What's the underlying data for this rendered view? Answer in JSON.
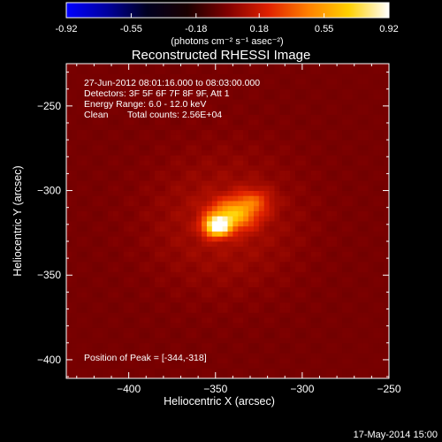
{
  "figure": {
    "title": "Reconstructed RHESSI Image",
    "xlabel": "Heliocentric X (arcsec)",
    "ylabel": "Heliocentric Y (arcsec)",
    "footer_date": "17-May-2014 15:00"
  },
  "colorbar": {
    "ticks": [
      "-0.92",
      "-0.55",
      "-0.18",
      "0.18",
      "0.55",
      "0.92"
    ],
    "label": "(photons cm⁻² s⁻¹ asec⁻²)",
    "stops": [
      "#0000ff",
      "#0000a0",
      "#000020",
      "#1a0000",
      "#800000",
      "#e02000",
      "#ff8000",
      "#ffd000",
      "#ffffff"
    ]
  },
  "annotations": {
    "time_range": "27-Jun-2012 08:01:16.000 to 08:03:00.000",
    "detectors": "Detectors: 3F 5F 6F 7F 8F 9F, Att 1",
    "energy": "Energy Range: 6.0 - 12.0 keV",
    "clean_label": "Clean",
    "total_counts": "Total counts: 2.56E+04",
    "peak": "Position of Peak = [-344,-318]"
  },
  "chart_data": {
    "type": "heatmap",
    "title": "Reconstructed RHESSI Image",
    "xlabel": "Heliocentric X (arcsec)",
    "ylabel": "Heliocentric Y (arcsec)",
    "xlim": [
      -436,
      -250
    ],
    "ylim": [
      -411,
      -225
    ],
    "xticks": [
      -400,
      -350,
      -300,
      -250
    ],
    "xtick_labels": [
      "−400",
      "−350",
      "−300",
      "−250"
    ],
    "yticks": [
      -400,
      -350,
      -300,
      -250
    ],
    "ytick_labels": [
      "−400",
      "−350",
      "−300",
      "−250"
    ],
    "color_range": [
      -0.92,
      0.92
    ],
    "peak": [
      -344,
      -318
    ],
    "sources": [
      {
        "x": -349,
        "y": -321,
        "sx": 5,
        "sy": 4,
        "amp": 0.92
      },
      {
        "x": -340,
        "y": -314,
        "sx": 9,
        "sy": 6,
        "amp": 0.55
      },
      {
        "x": -328,
        "y": -306,
        "sx": 7,
        "sy": 5,
        "amp": 0.25
      },
      {
        "x": -345,
        "y": -318,
        "sx": 30,
        "sy": 28,
        "amp": 0.12
      }
    ]
  }
}
